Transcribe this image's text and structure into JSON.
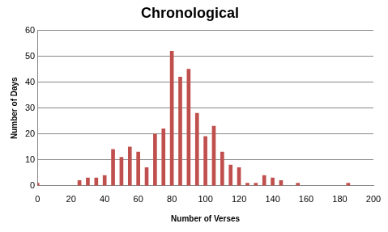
{
  "chart_data": {
    "type": "bar",
    "title": "Chronological",
    "x_label": "Number of Verses",
    "y_label": "Number of Days",
    "x": [
      0,
      25,
      30,
      35,
      40,
      45,
      50,
      55,
      60,
      65,
      70,
      75,
      80,
      85,
      90,
      95,
      100,
      105,
      110,
      115,
      120,
      125,
      130,
      135,
      140,
      145,
      155,
      185
    ],
    "values": [
      1,
      2,
      3,
      3,
      4,
      14,
      11,
      15,
      13,
      7,
      20,
      22,
      52,
      42,
      45,
      28,
      19,
      23,
      13,
      8,
      7,
      1,
      1,
      4,
      3,
      2,
      1,
      1
    ],
    "color": "#c0504d",
    "xlim": [
      0,
      200
    ],
    "xticks": [
      0,
      20,
      40,
      60,
      80,
      100,
      120,
      140,
      160,
      180,
      200
    ],
    "ylim": [
      0,
      60
    ],
    "yticks": [
      0,
      10,
      20,
      30,
      40,
      50,
      60
    ],
    "grid": true
  }
}
